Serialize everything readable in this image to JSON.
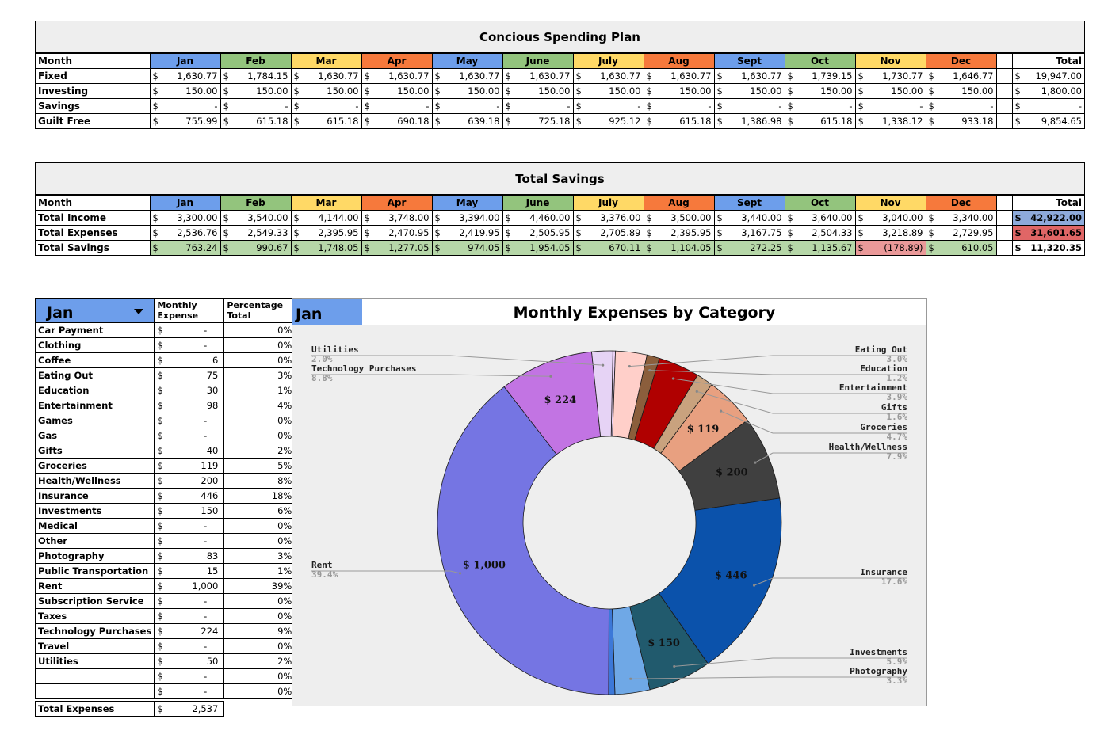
{
  "plan": {
    "title": "Concious Spending Plan",
    "month_label": "Month",
    "months": [
      "Jan",
      "Feb",
      "Mar",
      "Apr",
      "May",
      "June",
      "July",
      "Aug",
      "Sept",
      "Oct",
      "Nov",
      "Dec"
    ],
    "month_colors": [
      "#6d9eeb",
      "#93c47d",
      "#ffd966",
      "#f6793c",
      "#6d9eeb",
      "#93c47d",
      "#ffd966",
      "#f6793c",
      "#6d9eeb",
      "#93c47d",
      "#ffd966",
      "#f6793c"
    ],
    "total_label": "Total",
    "rows": [
      {
        "label": "Fixed",
        "values": [
          "1,630.77",
          "1,784.15",
          "1,630.77",
          "1,630.77",
          "1,630.77",
          "1,630.77",
          "1,630.77",
          "1,630.77",
          "1,630.77",
          "1,739.15",
          "1,730.77",
          "1,646.77"
        ],
        "total": "19,947.00"
      },
      {
        "label": "Investing",
        "values": [
          "150.00",
          "150.00",
          "150.00",
          "150.00",
          "150.00",
          "150.00",
          "150.00",
          "150.00",
          "150.00",
          "150.00",
          "150.00",
          "150.00"
        ],
        "total": "1,800.00"
      },
      {
        "label": "Savings",
        "values": [
          "-",
          "-",
          "-",
          "-",
          "-",
          "-",
          "-",
          "-",
          "-",
          "-",
          "-",
          "-"
        ],
        "total": "-"
      },
      {
        "label": "Guilt Free",
        "values": [
          "755.99",
          "615.18",
          "615.18",
          "690.18",
          "639.18",
          "725.18",
          "925.12",
          "615.18",
          "1,386.98",
          "615.18",
          "1,338.12",
          "933.18"
        ],
        "total": "9,854.65"
      }
    ]
  },
  "savings": {
    "title": "Total Savings",
    "month_label": "Month",
    "total_label": "Total",
    "rows": [
      {
        "label": "Total Income",
        "values": [
          "3,300.00",
          "3,540.00",
          "4,144.00",
          "3,748.00",
          "3,394.00",
          "4,460.00",
          "3,376.00",
          "3,500.00",
          "3,440.00",
          "3,640.00",
          "3,040.00",
          "3,340.00"
        ],
        "total": "42,922.00",
        "total_color": "#8eaadb"
      },
      {
        "label": "Total Expenses",
        "values": [
          "2,536.76",
          "2,549.33",
          "2,395.95",
          "2,470.95",
          "2,419.95",
          "2,505.95",
          "2,705.89",
          "2,395.95",
          "3,167.75",
          "2,504.33",
          "3,218.89",
          "2,729.95"
        ],
        "total": "31,601.65",
        "total_color": "#e06666"
      },
      {
        "label": "Total Savings",
        "values": [
          "763.24",
          "990.67",
          "1,748.05",
          "1,277.05",
          "974.05",
          "1,954.05",
          "670.11",
          "1,104.05",
          "272.25",
          "1,135.67",
          "(178.89)",
          "610.05"
        ],
        "total": "11,320.35",
        "total_color": "#ffffff",
        "positive_color": "#b6d7a8",
        "negative_color": "#ea9999"
      }
    ]
  },
  "category": {
    "month": "Jan",
    "col_expense": "Monthly Expense",
    "col_percent": "Percentage Total",
    "currency": "$",
    "rows": [
      {
        "name": "Car Payment",
        "amount": "-",
        "pct": "0%"
      },
      {
        "name": "Clothing",
        "amount": "-",
        "pct": "0%"
      },
      {
        "name": "Coffee",
        "amount": "6",
        "pct": "0%"
      },
      {
        "name": "Eating Out",
        "amount": "75",
        "pct": "3%"
      },
      {
        "name": "Education",
        "amount": "30",
        "pct": "1%"
      },
      {
        "name": "Entertainment",
        "amount": "98",
        "pct": "4%"
      },
      {
        "name": "Games",
        "amount": "-",
        "pct": "0%"
      },
      {
        "name": "Gas",
        "amount": "-",
        "pct": "0%"
      },
      {
        "name": "Gifts",
        "amount": "40",
        "pct": "2%"
      },
      {
        "name": "Groceries",
        "amount": "119",
        "pct": "5%"
      },
      {
        "name": "Health/Wellness",
        "amount": "200",
        "pct": "8%"
      },
      {
        "name": "Insurance",
        "amount": "446",
        "pct": "18%"
      },
      {
        "name": "Investments",
        "amount": "150",
        "pct": "6%"
      },
      {
        "name": "Medical",
        "amount": "-",
        "pct": "0%"
      },
      {
        "name": "Other",
        "amount": "-",
        "pct": "0%"
      },
      {
        "name": "Photography",
        "amount": "83",
        "pct": "3%"
      },
      {
        "name": "Public Transportation",
        "amount": "15",
        "pct": "1%"
      },
      {
        "name": "Rent",
        "amount": "1,000",
        "pct": "39%"
      },
      {
        "name": "Subscription Service",
        "amount": "-",
        "pct": "0%"
      },
      {
        "name": "Taxes",
        "amount": "-",
        "pct": "0%"
      },
      {
        "name": "Technology Purchases",
        "amount": "224",
        "pct": "9%"
      },
      {
        "name": "Travel",
        "amount": "-",
        "pct": "0%"
      },
      {
        "name": "Utilities",
        "amount": "50",
        "pct": "2%"
      },
      {
        "name": "",
        "amount": "-",
        "pct": "0%"
      },
      {
        "name": "",
        "amount": "-",
        "pct": "0%"
      }
    ],
    "total_label": "Total Expenses",
    "total_amount": "2,537"
  },
  "chart_data": {
    "type": "pie",
    "donut": true,
    "month": "Jan",
    "title": "Monthly Expenses by Category",
    "slices": [
      {
        "name": "Coffee",
        "value": 6,
        "color": "#ead1f5"
      },
      {
        "name": "Eating Out",
        "value": 75,
        "color": "#ffcfc9",
        "label_pct": "3.0%"
      },
      {
        "name": "Education",
        "value": 30,
        "color": "#8b5e3c",
        "label_pct": "1.2%"
      },
      {
        "name": "Entertainment",
        "value": 98,
        "color": "#b00000",
        "label_pct": "3.9%"
      },
      {
        "name": "Gifts",
        "value": 40,
        "color": "#c9a27e",
        "label_pct": "1.6%"
      },
      {
        "name": "Groceries",
        "value": 119,
        "color": "#e8a080",
        "label_pct": "4.7%",
        "data_label": "$ 119"
      },
      {
        "name": "Health/Wellness",
        "value": 200,
        "color": "#404040",
        "label_pct": "7.9%",
        "data_label": "$ 200"
      },
      {
        "name": "Insurance",
        "value": 446,
        "color": "#0b52ab",
        "label_pct": "17.6%",
        "data_label": "$ 446"
      },
      {
        "name": "Investments",
        "value": 150,
        "color": "#215a6d",
        "label_pct": "5.9%",
        "data_label": "$ 150"
      },
      {
        "name": "Photography",
        "value": 83,
        "color": "#6fa8e6",
        "label_pct": "3.3%"
      },
      {
        "name": "Public Transportation",
        "value": 15,
        "color": "#3c78d8"
      },
      {
        "name": "Rent",
        "value": 1000,
        "color": "#7575e3",
        "label_pct": "39.4%",
        "data_label": "$ 1,000"
      },
      {
        "name": "Technology Purchases",
        "value": 224,
        "color": "#c274e3",
        "label_pct": "8.8%",
        "data_label": "$ 224"
      },
      {
        "name": "Utilities",
        "value": 50,
        "color": "#e6d3f5",
        "label_pct": "2.0%"
      }
    ]
  }
}
